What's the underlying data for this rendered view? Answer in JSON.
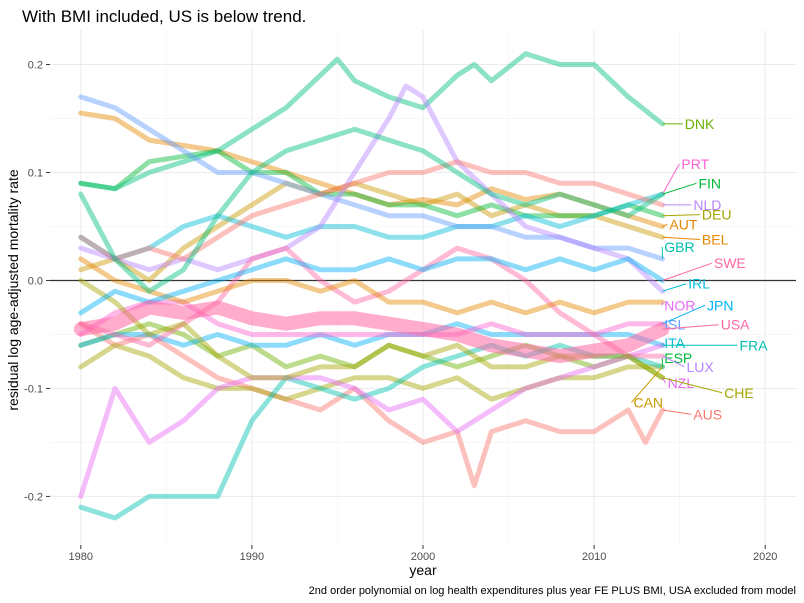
{
  "chart_data": {
    "type": "line",
    "title": "With BMI included, US is below trend.",
    "xlabel": "year",
    "ylabel": "residual log age-adjusted mortality rate",
    "caption": "2nd order polynomial on log health expenditures plus year FE PLUS BMI, USA excluded from model",
    "xlim": [
      1978.2,
      2021.8
    ],
    "ylim": [
      -0.245,
      0.232
    ],
    "x_ticks": [
      1980,
      1990,
      2000,
      2010,
      2020
    ],
    "x_tick_labels": [
      "1980",
      "1990",
      "2000",
      "2010",
      "2020"
    ],
    "y_ticks": [
      -0.2,
      -0.1,
      0.0,
      0.1,
      0.2
    ],
    "y_tick_labels": [
      "-0.2",
      "-0.1",
      "0.0",
      "0.1",
      "0.2"
    ],
    "reference_line": 0,
    "series": [
      {
        "name": "AUS",
        "color": "#F8766D",
        "x": [
          1980,
          1982,
          1984,
          1986,
          1988,
          1990,
          1992,
          1994,
          1996,
          1998,
          2000,
          2002,
          2003,
          2004,
          2006,
          2008,
          2010,
          2012,
          2013,
          2014
        ],
        "y": [
          -0.04,
          -0.06,
          -0.05,
          -0.07,
          -0.09,
          -0.1,
          -0.11,
          -0.12,
          -0.1,
          -0.13,
          -0.15,
          -0.14,
          -0.19,
          -0.14,
          -0.13,
          -0.14,
          -0.14,
          -0.12,
          -0.15,
          -0.12
        ]
      },
      {
        "name": "AUT",
        "color": "#E58700",
        "x": [
          1980,
          1982,
          1984,
          1986,
          1988,
          1990,
          1992,
          1994,
          1996,
          1998,
          2000,
          2002,
          2004,
          2006,
          2008,
          2010,
          2012,
          2014
        ],
        "y": [
          0.155,
          0.15,
          0.13,
          0.125,
          0.12,
          0.11,
          0.1,
          0.09,
          0.08,
          0.07,
          0.075,
          0.07,
          0.085,
          0.075,
          0.08,
          0.07,
          0.06,
          0.05
        ]
      },
      {
        "name": "BEL",
        "color": "#C99800",
        "x": [
          1980,
          1982,
          1984,
          1986,
          1988,
          1990,
          1992,
          1994,
          1996,
          1998,
          2000,
          2002,
          2004,
          2006,
          2008,
          2010,
          2012,
          2014
        ],
        "y": [
          0.01,
          0.02,
          0.0,
          0.03,
          0.05,
          0.07,
          0.09,
          0.08,
          0.09,
          0.08,
          0.07,
          0.08,
          0.06,
          0.07,
          0.06,
          0.06,
          0.05,
          0.04
        ]
      },
      {
        "name": "CAN",
        "color": "#A3A500",
        "x": [
          1980,
          1982,
          1984,
          1986,
          1988,
          1990,
          1992,
          1994,
          1996,
          1998,
          2000,
          2002,
          2004,
          2006,
          2008,
          2010,
          2012,
          2014
        ],
        "y": [
          -0.08,
          -0.06,
          -0.07,
          -0.09,
          -0.1,
          -0.1,
          -0.11,
          -0.1,
          -0.09,
          -0.09,
          -0.1,
          -0.09,
          -0.11,
          -0.1,
          -0.09,
          -0.09,
          -0.08,
          -0.08
        ]
      },
      {
        "name": "CHE",
        "color": "#6BB100",
        "x": [
          1980,
          1982,
          1984,
          1986,
          1988,
          1990,
          1992,
          1994,
          1996,
          1998,
          2000,
          2002,
          2004,
          2006,
          2008,
          2010,
          2012,
          2014
        ],
        "y": [
          -0.06,
          -0.05,
          -0.04,
          -0.05,
          -0.07,
          -0.06,
          -0.08,
          -0.07,
          -0.08,
          -0.06,
          -0.07,
          -0.08,
          -0.07,
          -0.06,
          -0.07,
          -0.08,
          -0.07,
          -0.09
        ]
      },
      {
        "name": "DEU",
        "color": "#00BA38",
        "x": [
          1980,
          1982,
          1984,
          1986,
          1988,
          1990,
          1992,
          1994,
          1996,
          1998,
          2000,
          2002,
          2004,
          2006,
          2008,
          2010,
          2012,
          2014
        ],
        "y": [
          0.09,
          0.085,
          0.11,
          0.115,
          0.12,
          0.1,
          0.1,
          0.08,
          0.08,
          0.07,
          0.07,
          0.06,
          0.07,
          0.06,
          0.06,
          0.06,
          0.07,
          0.06
        ]
      },
      {
        "name": "DNK",
        "color": "#00BF7D",
        "x": [
          1980,
          1982,
          1984,
          1986,
          1988,
          1990,
          1992,
          1994,
          1995,
          1996,
          1998,
          2000,
          2002,
          2003,
          2004,
          2006,
          2008,
          2010,
          2012,
          2014
        ],
        "y": [
          0.09,
          0.085,
          0.1,
          0.11,
          0.12,
          0.14,
          0.16,
          0.19,
          0.205,
          0.185,
          0.17,
          0.16,
          0.19,
          0.2,
          0.185,
          0.21,
          0.2,
          0.2,
          0.17,
          0.145
        ]
      },
      {
        "name": "ESP",
        "color": "#00C0AF",
        "x": [
          1980,
          1982,
          1984,
          1986,
          1988,
          1990,
          1992,
          1994,
          1996,
          1998,
          2000,
          2002,
          2004,
          2006,
          2008,
          2010,
          2012,
          2014
        ],
        "y": [
          -0.21,
          -0.22,
          -0.2,
          -0.2,
          -0.2,
          -0.13,
          -0.09,
          -0.1,
          -0.11,
          -0.1,
          -0.08,
          -0.07,
          -0.06,
          -0.07,
          -0.06,
          -0.07,
          -0.07,
          -0.08
        ]
      },
      {
        "name": "FIN",
        "color": "#00BCD8",
        "x": [
          1980,
          1982,
          1984,
          1986,
          1988,
          1990,
          1992,
          1994,
          1996,
          1998,
          2000,
          2002,
          2004,
          2006,
          2008,
          2010,
          2012,
          2014
        ],
        "y": [
          0.04,
          0.02,
          0.03,
          0.05,
          0.06,
          0.05,
          0.04,
          0.05,
          0.05,
          0.04,
          0.04,
          0.05,
          0.05,
          0.06,
          0.05,
          0.06,
          0.07,
          0.08
        ]
      },
      {
        "name": "FRA",
        "color": "#00B0F6",
        "x": [
          1980,
          1982,
          1984,
          1986,
          1988,
          1990,
          1992,
          1994,
          1996,
          1998,
          2000,
          2002,
          2004,
          2006,
          2008,
          2010,
          2012,
          2014
        ],
        "y": [
          -0.06,
          -0.05,
          -0.05,
          -0.06,
          -0.05,
          -0.06,
          -0.06,
          -0.05,
          -0.06,
          -0.05,
          -0.05,
          -0.04,
          -0.05,
          -0.05,
          -0.05,
          -0.05,
          -0.05,
          -0.06
        ]
      },
      {
        "name": "GBR",
        "color": "#619CFF",
        "x": [
          1980,
          1982,
          1984,
          1986,
          1988,
          1990,
          1992,
          1994,
          1996,
          1998,
          2000,
          2002,
          2004,
          2006,
          2008,
          2010,
          2012,
          2014
        ],
        "y": [
          0.17,
          0.16,
          0.14,
          0.12,
          0.1,
          0.1,
          0.09,
          0.08,
          0.07,
          0.06,
          0.06,
          0.05,
          0.05,
          0.04,
          0.04,
          0.03,
          0.03,
          0.02
        ]
      },
      {
        "name": "IRL",
        "color": "#B983FF",
        "x": [
          1980,
          1982,
          1984,
          1986,
          1988,
          1990,
          1992,
          1994,
          1996,
          1998,
          1999,
          2000,
          2002,
          2004,
          2006,
          2008,
          2010,
          2012,
          2014
        ],
        "y": [
          0.03,
          0.02,
          0.01,
          0.02,
          0.01,
          0.02,
          0.03,
          0.05,
          0.1,
          0.15,
          0.18,
          0.17,
          0.11,
          0.08,
          0.05,
          0.04,
          0.03,
          0.02,
          -0.01
        ]
      },
      {
        "name": "ITA",
        "color": "#E76BF3",
        "x": [
          1980,
          1982,
          1984,
          1986,
          1988,
          1990,
          1992,
          1994,
          1996,
          1998,
          2000,
          2002,
          2004,
          2006,
          2008,
          2010,
          2012,
          2014
        ],
        "y": [
          -0.2,
          -0.1,
          -0.15,
          -0.13,
          -0.1,
          -0.09,
          -0.09,
          -0.09,
          -0.1,
          -0.12,
          -0.11,
          -0.14,
          -0.12,
          -0.1,
          -0.09,
          -0.08,
          -0.07,
          -0.06
        ]
      },
      {
        "name": "JPN",
        "color": "#FD61D1",
        "x": [
          1980,
          1982,
          1984,
          1986,
          1988,
          1990,
          1992,
          1994,
          1996,
          1998,
          2000,
          2002,
          2004,
          2006,
          2008,
          2010,
          2012,
          2014
        ],
        "y": [
          -0.05,
          -0.03,
          -0.02,
          -0.02,
          -0.04,
          -0.05,
          -0.05,
          -0.05,
          -0.05,
          -0.05,
          -0.05,
          -0.05,
          -0.04,
          -0.05,
          -0.05,
          -0.05,
          -0.04,
          -0.04
        ]
      },
      {
        "name": "LUX",
        "color": "#FF67A4",
        "x": [
          1980,
          1982,
          1984,
          1986,
          1988,
          1990,
          1992,
          1994,
          1996,
          1998,
          2000,
          2002,
          2004,
          2006,
          2008,
          2010,
          2012,
          2014
        ],
        "y": [
          -0.04,
          -0.05,
          -0.06,
          -0.04,
          -0.02,
          0.02,
          0.03,
          0.0,
          -0.02,
          -0.01,
          0.01,
          0.03,
          0.02,
          0.0,
          -0.03,
          -0.05,
          -0.07,
          -0.07
        ]
      },
      {
        "name": "NLD",
        "color": "#F8766D",
        "x": [
          1980,
          1982,
          1984,
          1986,
          1988,
          1990,
          1992,
          1994,
          1996,
          1998,
          2000,
          2002,
          2004,
          2006,
          2008,
          2010,
          2012,
          2014
        ],
        "y": [
          0.04,
          0.02,
          0.03,
          0.02,
          0.04,
          0.06,
          0.07,
          0.08,
          0.09,
          0.1,
          0.1,
          0.11,
          0.1,
          0.1,
          0.09,
          0.09,
          0.08,
          0.07
        ]
      },
      {
        "name": "NOR",
        "color": "#E58700",
        "x": [
          1980,
          1982,
          1984,
          1986,
          1988,
          1990,
          1992,
          1994,
          1996,
          1998,
          2000,
          2002,
          2004,
          2006,
          2008,
          2010,
          2012,
          2014
        ],
        "y": [
          0.02,
          0.0,
          -0.01,
          -0.02,
          -0.01,
          0.0,
          0.0,
          -0.01,
          0.0,
          -0.02,
          -0.02,
          -0.03,
          -0.02,
          -0.03,
          -0.02,
          -0.03,
          -0.02,
          -0.02
        ]
      },
      {
        "name": "NZL",
        "color": "#A3A500",
        "x": [
          1980,
          1982,
          1984,
          1986,
          1988,
          1990,
          1992,
          1994,
          1996,
          1998,
          2000,
          2002,
          2004,
          2006,
          2008,
          2010,
          2012,
          2014
        ],
        "y": [
          0.0,
          -0.02,
          -0.05,
          -0.04,
          -0.07,
          -0.09,
          -0.09,
          -0.08,
          -0.08,
          -0.06,
          -0.07,
          -0.06,
          -0.08,
          -0.08,
          -0.07,
          -0.07,
          -0.07,
          -0.09
        ]
      },
      {
        "name": "PRT",
        "color": "#00BF7D",
        "x": [
          1980,
          1982,
          1984,
          1986,
          1988,
          1990,
          1992,
          1994,
          1996,
          1998,
          2000,
          2002,
          2004,
          2006,
          2008,
          2010,
          2012,
          2014
        ],
        "y": [
          0.08,
          0.02,
          -0.01,
          0.01,
          0.06,
          0.1,
          0.12,
          0.13,
          0.14,
          0.13,
          0.12,
          0.1,
          0.08,
          0.07,
          0.08,
          0.07,
          0.06,
          0.08
        ]
      },
      {
        "name": "SWE",
        "color": "#00B0F6",
        "x": [
          1980,
          1982,
          1984,
          1986,
          1988,
          1990,
          1992,
          1994,
          1996,
          1998,
          2000,
          2002,
          2004,
          2006,
          2008,
          2010,
          2012,
          2014
        ],
        "y": [
          -0.03,
          -0.01,
          -0.02,
          -0.01,
          0.0,
          0.01,
          0.02,
          0.01,
          0.01,
          0.02,
          0.01,
          0.02,
          0.02,
          0.01,
          0.02,
          0.01,
          0.02,
          0.0
        ]
      },
      {
        "name": "USA",
        "color": "#FF67A4",
        "x": [
          1980,
          1982,
          1984,
          1986,
          1988,
          1990,
          1992,
          1994,
          1996,
          1998,
          2000,
          2002,
          2004,
          2006,
          2008,
          2010,
          2012,
          2014
        ],
        "y": [
          -0.045,
          -0.04,
          -0.025,
          -0.03,
          -0.025,
          -0.035,
          -0.04,
          -0.035,
          -0.035,
          -0.04,
          -0.045,
          -0.05,
          -0.06,
          -0.065,
          -0.07,
          -0.065,
          -0.06,
          -0.045
        ]
      }
    ],
    "end_labels": [
      {
        "name": "DNK",
        "color": "#6BB100",
        "y": 0.145
      },
      {
        "name": "PRT",
        "color": "#FD61D1",
        "y": 0.108
      },
      {
        "name": "FIN",
        "color": "#00BA38",
        "y": 0.09
      },
      {
        "name": "NLD",
        "color": "#B983FF",
        "y": 0.07
      },
      {
        "name": "DEU",
        "color": "#A3A500",
        "y": 0.061
      },
      {
        "name": "AUT",
        "color": "#E58700",
        "y": 0.052
      },
      {
        "name": "BEL",
        "color": "#E58700",
        "y": 0.038
      },
      {
        "name": "GBR",
        "color": "#00C0AF",
        "y": 0.031
      },
      {
        "name": "SWE",
        "color": "#FF67A4",
        "y": 0.016
      },
      {
        "name": "IRL",
        "color": "#00BCD8",
        "y": -0.003
      },
      {
        "name": "NOR",
        "color": "#E76BF3",
        "y": -0.023
      },
      {
        "name": "JPN",
        "color": "#00B0F6",
        "y": -0.023
      },
      {
        "name": "ISL",
        "color": "#619CFF",
        "y": -0.041
      },
      {
        "name": "USA",
        "color": "#FF67A4",
        "y": -0.041
      },
      {
        "name": "ITA",
        "color": "#00BCD8",
        "y": -0.058
      },
      {
        "name": "FRA",
        "color": "#00C0AF",
        "y": -0.06
      },
      {
        "name": "ESP",
        "color": "#00BA38",
        "y": -0.072
      },
      {
        "name": "LUX",
        "color": "#B983FF",
        "y": -0.08
      },
      {
        "name": "NZL",
        "color": "#E76BF3",
        "y": -0.095
      },
      {
        "name": "CHE",
        "color": "#A3A500",
        "y": -0.104
      },
      {
        "name": "CAN",
        "color": "#C99800",
        "y": -0.113
      },
      {
        "name": "AUS",
        "color": "#F8766D",
        "y": -0.124
      }
    ]
  }
}
